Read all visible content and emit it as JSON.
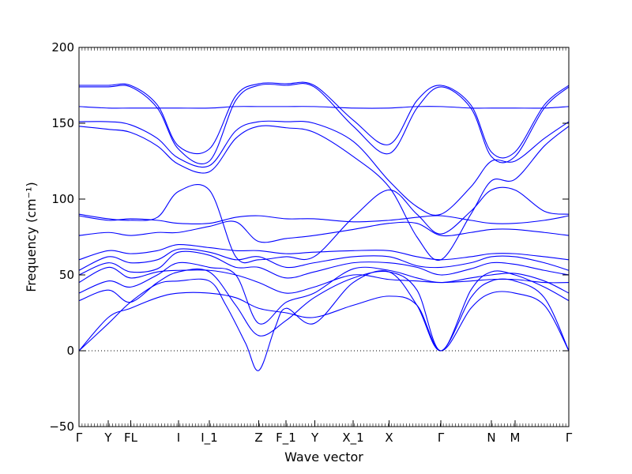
{
  "chart_data": {
    "type": "line",
    "title": "",
    "xlabel": "Wave vector",
    "ylabel": "Frequency (cm⁻¹)",
    "ylim": [
      -50,
      200
    ],
    "yticks": [
      -50,
      0,
      50,
      100,
      150,
      200
    ],
    "zero_line": true,
    "grid": false,
    "legend": "none",
    "colors": {
      "bands": "#0000ff",
      "zero_line": "#000000"
    },
    "high_symmetry_points": [
      {
        "label": "Γ",
        "x": 0.0
      },
      {
        "label": "Y",
        "x": 0.0597
      },
      {
        "label": "FL",
        "x": 0.1056
      },
      {
        "label": "I",
        "x": 0.2032
      },
      {
        "label": "I_1",
        "x": 0.2661
      },
      {
        "label": "Z",
        "x": 0.3669
      },
      {
        "label": "F_1",
        "x": 0.4226
      },
      {
        "label": "Y",
        "x": 0.4815
      },
      {
        "label": "X_1",
        "x": 0.5597
      },
      {
        "label": "X",
        "x": 0.6331
      },
      {
        "label": "Γ",
        "x": 0.7387
      },
      {
        "label": "N",
        "x": 0.8419
      },
      {
        "label": "M",
        "x": 0.8903
      },
      {
        "label": "Γ",
        "x": 1.0
      }
    ],
    "series": [
      {
        "x": [
          0,
          0.06,
          0.105,
          0.16,
          0.203,
          0.266,
          0.32,
          0.367,
          0.423,
          0.48,
          0.56,
          0.633,
          0.69,
          0.739,
          0.8,
          0.842,
          0.89,
          0.95,
          1.0
        ],
        "values": [
          0,
          22,
          28,
          35,
          38,
          38,
          35,
          28,
          25,
          22,
          30,
          36,
          30,
          0,
          28,
          38,
          38,
          30,
          0
        ]
      },
      {
        "x": [
          0,
          0.06,
          0.105,
          0.16,
          0.203,
          0.266,
          0.3,
          0.34,
          0.367,
          0.4,
          0.423,
          0.48,
          0.56,
          0.633,
          0.69,
          0.739,
          0.8,
          0.842,
          0.89,
          0.95,
          1.0
        ],
        "values": [
          0,
          18,
          32,
          44,
          46,
          46,
          30,
          5,
          -13,
          15,
          28,
          18,
          45,
          52,
          30,
          0,
          35,
          46,
          46,
          35,
          0
        ]
      },
      {
        "x": [
          0,
          0.06,
          0.105,
          0.16,
          0.203,
          0.266,
          0.32,
          0.367,
          0.423,
          0.48,
          0.56,
          0.633,
          0.69,
          0.739,
          0.8,
          0.842,
          0.89,
          0.95,
          1.0
        ],
        "values": [
          33,
          40,
          32,
          45,
          52,
          52,
          30,
          10,
          20,
          35,
          48,
          52,
          40,
          0,
          40,
          52,
          50,
          42,
          33
        ]
      },
      {
        "x": [
          0,
          0.06,
          0.105,
          0.16,
          0.203,
          0.266,
          0.32,
          0.367,
          0.423,
          0.48,
          0.56,
          0.633,
          0.69,
          0.739,
          0.8,
          0.842,
          0.89,
          0.95,
          1.0
        ],
        "values": [
          38,
          46,
          42,
          50,
          58,
          55,
          50,
          18,
          32,
          38,
          54,
          53,
          48,
          45,
          48,
          50,
          51,
          46,
          38
        ]
      },
      {
        "x": [
          0,
          0.06,
          0.105,
          0.16,
          0.203,
          0.266,
          0.32,
          0.367,
          0.423,
          0.48,
          0.56,
          0.633,
          0.69,
          0.739,
          0.8,
          0.842,
          0.89,
          0.95,
          1.0
        ],
        "values": [
          45,
          55,
          48,
          52,
          53,
          53,
          50,
          45,
          38,
          42,
          50,
          47,
          46,
          45,
          46,
          47,
          47,
          45,
          45
        ]
      },
      {
        "x": [
          0,
          0.06,
          0.105,
          0.16,
          0.203,
          0.266,
          0.32,
          0.367,
          0.423,
          0.48,
          0.56,
          0.633,
          0.69,
          0.739,
          0.8,
          0.842,
          0.89,
          0.95,
          1.0
        ],
        "values": [
          50,
          58,
          52,
          54,
          65,
          63,
          55,
          55,
          48,
          52,
          58,
          58,
          55,
          50,
          54,
          58,
          57,
          53,
          50
        ]
      },
      {
        "x": [
          0,
          0.06,
          0.105,
          0.16,
          0.203,
          0.266,
          0.32,
          0.367,
          0.423,
          0.48,
          0.56,
          0.633,
          0.69,
          0.739,
          0.8,
          0.842,
          0.89,
          0.95,
          1.0
        ],
        "values": [
          53,
          62,
          58,
          60,
          67,
          65,
          60,
          62,
          55,
          58,
          62,
          62,
          56,
          55,
          58,
          62,
          62,
          58,
          53
        ]
      },
      {
        "x": [
          0,
          0.06,
          0.105,
          0.16,
          0.203,
          0.266,
          0.32,
          0.367,
          0.423,
          0.48,
          0.56,
          0.633,
          0.69,
          0.739,
          0.8,
          0.842,
          0.89,
          0.95,
          1.0
        ],
        "values": [
          60,
          66,
          64,
          66,
          70,
          68,
          66,
          66,
          64,
          65,
          66,
          66,
          62,
          60,
          62,
          64,
          64,
          62,
          60
        ]
      },
      {
        "x": [
          0,
          0.06,
          0.105,
          0.16,
          0.203,
          0.266,
          0.32,
          0.367,
          0.423,
          0.48,
          0.56,
          0.633,
          0.69,
          0.739,
          0.8,
          0.842,
          0.89,
          0.95,
          1.0
        ],
        "values": [
          76,
          78,
          76,
          78,
          78,
          82,
          85,
          72,
          74,
          76,
          80,
          84,
          84,
          76,
          78,
          80,
          80,
          78,
          76
        ]
      },
      {
        "x": [
          0,
          0.06,
          0.105,
          0.16,
          0.203,
          0.266,
          0.32,
          0.367,
          0.423,
          0.48,
          0.56,
          0.633,
          0.69,
          0.739,
          0.8,
          0.842,
          0.89,
          0.95,
          1.0
        ],
        "values": [
          89,
          86,
          87,
          86,
          84,
          84,
          88,
          89,
          87,
          87,
          85,
          86,
          88,
          89,
          86,
          84,
          84,
          86,
          89
        ]
      },
      {
        "x": [
          0,
          0.06,
          0.105,
          0.16,
          0.203,
          0.266,
          0.32,
          0.367,
          0.423,
          0.48,
          0.56,
          0.633,
          0.69,
          0.739,
          0.8,
          0.842,
          0.89,
          0.95,
          1.0
        ],
        "values": [
          90,
          87,
          86,
          88,
          105,
          106,
          62,
          60,
          62,
          62,
          88,
          106,
          90,
          77,
          92,
          106,
          106,
          92,
          90
        ]
      },
      {
        "x": [
          0,
          0.06,
          0.105,
          0.16,
          0.203,
          0.266,
          0.32,
          0.367,
          0.423,
          0.48,
          0.56,
          0.633,
          0.69,
          0.739,
          0.8,
          0.842,
          0.89,
          0.95,
          1.0
        ],
        "values": [
          148,
          146,
          144,
          135,
          123,
          118,
          140,
          148,
          147,
          144,
          128,
          108,
          75,
          60,
          90,
          112,
          113,
          135,
          148
        ]
      },
      {
        "x": [
          0,
          0.06,
          0.105,
          0.16,
          0.203,
          0.266,
          0.32,
          0.367,
          0.423,
          0.48,
          0.56,
          0.633,
          0.69,
          0.739,
          0.8,
          0.842,
          0.89,
          0.95,
          1.0
        ],
        "values": [
          151,
          151,
          149,
          140,
          127,
          122,
          145,
          151,
          151,
          150,
          138,
          112,
          95,
          90,
          108,
          125,
          125,
          140,
          151
        ]
      },
      {
        "x": [
          0,
          0.06,
          0.105,
          0.16,
          0.203,
          0.266,
          0.32,
          0.367,
          0.423,
          0.48,
          0.56,
          0.633,
          0.69,
          0.739,
          0.8,
          0.842,
          0.89,
          0.95,
          1.0
        ],
        "values": [
          161,
          160,
          160,
          160,
          160,
          160,
          161,
          161,
          161,
          161,
          160,
          160,
          161,
          161,
          160,
          160,
          160,
          160,
          161
        ]
      },
      {
        "x": [
          0,
          0.06,
          0.105,
          0.16,
          0.203,
          0.266,
          0.32,
          0.367,
          0.423,
          0.48,
          0.56,
          0.633,
          0.69,
          0.739,
          0.8,
          0.842,
          0.89,
          0.95,
          1.0
        ],
        "values": [
          174,
          174,
          174,
          160,
          133,
          125,
          165,
          175,
          175,
          174,
          148,
          130,
          160,
          174,
          160,
          128,
          128,
          160,
          174
        ]
      },
      {
        "x": [
          0,
          0.06,
          0.105,
          0.16,
          0.203,
          0.266,
          0.32,
          0.367,
          0.423,
          0.48,
          0.56,
          0.633,
          0.69,
          0.739,
          0.8,
          0.842,
          0.89,
          0.95,
          1.0
        ],
        "values": [
          175,
          175,
          175,
          162,
          135,
          133,
          168,
          176,
          176,
          175,
          152,
          136,
          165,
          175,
          162,
          131,
          131,
          162,
          175
        ]
      }
    ]
  }
}
